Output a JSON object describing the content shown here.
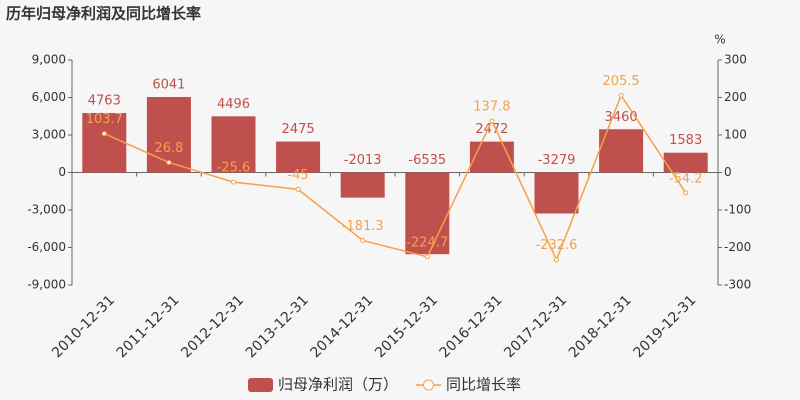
{
  "chart_data": {
    "type": "bar",
    "title": "历年归母净利润及同比增长率",
    "categories": [
      "2010-12-31",
      "2011-12-31",
      "2012-12-31",
      "2013-12-31",
      "2014-12-31",
      "2015-12-31",
      "2016-12-31",
      "2017-12-31",
      "2018-12-31",
      "2019-12-31"
    ],
    "series": [
      {
        "name": "归母净利润（万）",
        "type": "bar",
        "color": "#c0504d",
        "values": [
          4763,
          6041,
          4496,
          2475,
          -2013,
          -6535,
          2472,
          -3279,
          3460,
          1583
        ]
      },
      {
        "name": "同比增长率",
        "type": "line",
        "axis": "y2",
        "color": "#f5a04b",
        "values": [
          103.7,
          26.8,
          -25.6,
          -45,
          -181.3,
          -224.7,
          137.8,
          -232.6,
          205.5,
          -54.2
        ]
      }
    ],
    "ylim": [
      -9000,
      9000
    ],
    "yticks": [
      {
        "value": -9000,
        "label": "-9,000"
      },
      {
        "value": -6000,
        "label": "-6,000"
      },
      {
        "value": -3000,
        "label": "-3,000"
      },
      0,
      {
        "value": 3000,
        "label": "3,000"
      },
      {
        "value": 6000,
        "label": "6,000"
      },
      {
        "value": 9000,
        "label": "9,000"
      }
    ],
    "y2lim": [
      -300,
      300
    ],
    "y2ticks": [
      -300,
      -200,
      -100,
      0,
      100,
      200,
      300
    ],
    "y2label": "%"
  }
}
